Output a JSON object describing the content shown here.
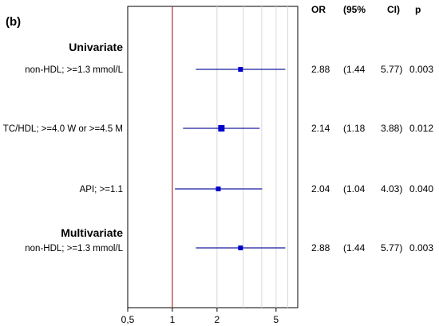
{
  "panel_label": "(b)",
  "header": {
    "or": "OR",
    "ci_open": "(95%",
    "ci_close": "CI)",
    "p": "p"
  },
  "chart_data": {
    "type": "forest",
    "x_scale": "log",
    "xlim": [
      0.5,
      7
    ],
    "reference_line": 1,
    "grid": true,
    "ticks": [
      {
        "value": 0.5,
        "label": "0,5"
      },
      {
        "value": 1,
        "label": "1"
      },
      {
        "value": 2,
        "label": "2"
      },
      {
        "value": 5,
        "label": "5"
      }
    ],
    "groups": [
      {
        "name": "Univariate",
        "rows": [
          {
            "label": "non-HDL; >=1.3 mmol/L",
            "or": 2.88,
            "lo": 1.44,
            "hi": 5.77,
            "or_text": "2.88",
            "lo_text": "(1.44",
            "hi_text": "5.77)",
            "p_text": "0.003"
          },
          {
            "label": "TC/HDL; >=4.0 W or >=4.5 M",
            "or": 2.14,
            "lo": 1.18,
            "hi": 3.88,
            "or_text": "2.14",
            "lo_text": "(1.18",
            "hi_text": "3.88)",
            "p_text": "0.012"
          },
          {
            "label": "API; >=1.1",
            "or": 2.04,
            "lo": 1.04,
            "hi": 4.03,
            "or_text": "2.04",
            "lo_text": "(1.04",
            "hi_text": "4.03)",
            "p_text": "0.040"
          }
        ]
      },
      {
        "name": "Multivariate",
        "rows": [
          {
            "label": "non-HDL; >=1.3 mmol/L",
            "or": 2.88,
            "lo": 1.44,
            "hi": 5.77,
            "or_text": "2.88",
            "lo_text": "(1.44",
            "hi_text": "5.77)",
            "p_text": "0.003"
          }
        ]
      }
    ],
    "colors": {
      "marker": "#0000cc",
      "ci_line": "#1a1aa0",
      "reference": "#b03030",
      "grid": "#d8d8d8",
      "axis": "#000000"
    }
  }
}
